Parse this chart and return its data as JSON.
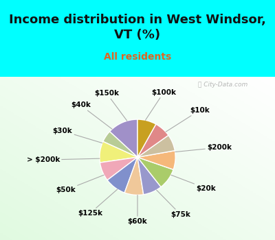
{
  "title": "Income distribution in West Windsor,\nVT (%)",
  "subtitle": "All residents",
  "watermark": "ⓘ City-Data.com",
  "labels": [
    "$100k",
    "$10k",
    "$200k",
    "$20k",
    "$75k",
    "$60k",
    "$125k",
    "$50k",
    "> $200k",
    "$30k",
    "$40k",
    "$150k"
  ],
  "values": [
    13,
    5,
    9,
    8,
    9,
    8,
    8,
    9,
    8,
    7,
    7,
    8
  ],
  "colors": [
    "#a090c8",
    "#b8cc96",
    "#f0f07a",
    "#f0a8b8",
    "#8090cc",
    "#f0c89a",
    "#9898cc",
    "#aacc6a",
    "#f5b87a",
    "#ccc0a0",
    "#e08888",
    "#c8a020"
  ],
  "bg_cyan": "#00ffff",
  "title_fontsize": 13,
  "subtitle_fontsize": 10,
  "startangle": 90,
  "label_params": [
    [
      "$100k",
      78,
      0.7
    ],
    [
      "$10k",
      42,
      0.74
    ],
    [
      "$200k",
      8,
      0.74
    ],
    [
      "$20k",
      -28,
      0.7
    ],
    [
      "$75k",
      -60,
      0.7
    ],
    [
      "$60k",
      -90,
      0.68
    ],
    [
      "$125k",
      -122,
      0.7
    ],
    [
      "$50k",
      -152,
      0.74
    ],
    [
      "> $200k",
      -178,
      0.82
    ],
    [
      "$30k",
      158,
      0.74
    ],
    [
      "$40k",
      132,
      0.74
    ],
    [
      "$150k",
      106,
      0.7
    ]
  ]
}
